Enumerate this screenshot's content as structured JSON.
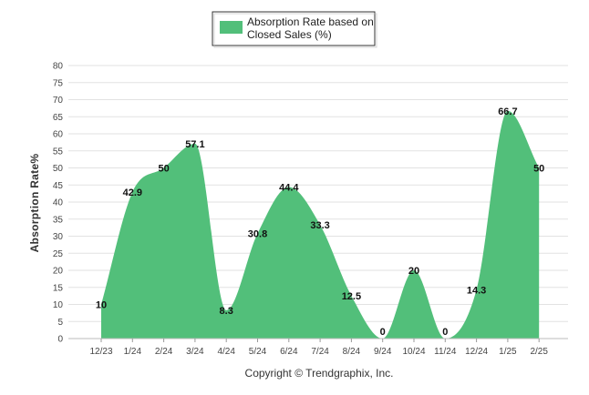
{
  "chart_data": {
    "type": "area",
    "categories": [
      "12/23",
      "1/24",
      "2/24",
      "3/24",
      "4/24",
      "5/24",
      "6/24",
      "7/24",
      "8/24",
      "9/24",
      "10/24",
      "11/24",
      "12/24",
      "1/25",
      "2/25"
    ],
    "series": [
      {
        "name": "Absorption Rate based on Closed Sales (%)",
        "name_lines": [
          "Absorption Rate based on",
          "Closed Sales (%)"
        ],
        "values": [
          10,
          42.9,
          50,
          57.1,
          8.3,
          30.8,
          44.4,
          33.3,
          12.5,
          0,
          20,
          0,
          14.3,
          66.7,
          50
        ],
        "labels": [
          "10",
          "42.9",
          "50",
          "57.1",
          "8.3",
          "30.8",
          "44.4",
          "33.3",
          "12.5",
          "0",
          "20",
          "0",
          "14.3",
          "66.7",
          "50"
        ],
        "color": "#52bf7a"
      }
    ],
    "ylabel": "Absorption Rate%",
    "ylim": [
      0,
      80
    ],
    "yticks": [
      "0",
      "5",
      "10",
      "15",
      "20",
      "25",
      "30",
      "35",
      "40",
      "45",
      "50",
      "55",
      "60",
      "65",
      "70",
      "75",
      "80"
    ],
    "grid": true,
    "legend": "top-center",
    "credit": "Copyright © Trendgraphix, Inc."
  }
}
